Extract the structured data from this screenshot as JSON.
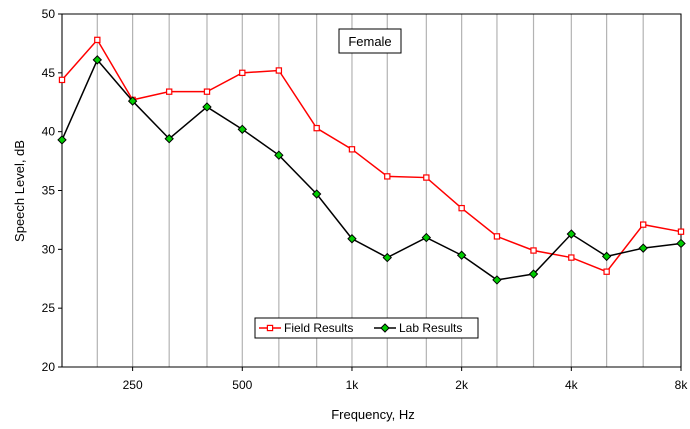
{
  "chart_data": {
    "type": "line",
    "title": "",
    "annotation": "Female",
    "xlabel": "Frequency, Hz",
    "ylabel": "Speech Level, dB",
    "xscale": "log",
    "xlim": [
      160,
      8000
    ],
    "ylim": [
      20,
      50
    ],
    "x": [
      160,
      200,
      250,
      315,
      400,
      500,
      630,
      800,
      1000,
      1250,
      1600,
      2000,
      2500,
      3150,
      4000,
      5000,
      6300,
      8000
    ],
    "x_tick_values": [
      250,
      500,
      1000,
      2000,
      4000,
      8000
    ],
    "x_tick_labels": [
      "250",
      "500",
      "1k",
      "2k",
      "4k",
      "8k"
    ],
    "y_ticks": [
      20,
      25,
      30,
      35,
      40,
      45,
      50
    ],
    "grid": "vertical",
    "legend_position": "bottom-center",
    "series": [
      {
        "name": "Field Results",
        "color": "#ff0000",
        "marker": "square",
        "values": [
          44.4,
          47.8,
          42.7,
          43.4,
          43.4,
          45.0,
          45.2,
          40.3,
          38.5,
          36.2,
          36.1,
          33.5,
          31.1,
          29.9,
          29.3,
          28.1,
          32.1,
          31.5
        ]
      },
      {
        "name": "Lab Results",
        "color": "#000000",
        "marker": "diamond",
        "marker_fill": "#00cc00",
        "values": [
          39.3,
          46.1,
          42.6,
          39.4,
          42.1,
          40.2,
          38.0,
          34.7,
          30.9,
          29.3,
          31.0,
          29.5,
          27.4,
          27.9,
          31.3,
          29.4,
          30.1,
          30.5
        ]
      }
    ]
  }
}
